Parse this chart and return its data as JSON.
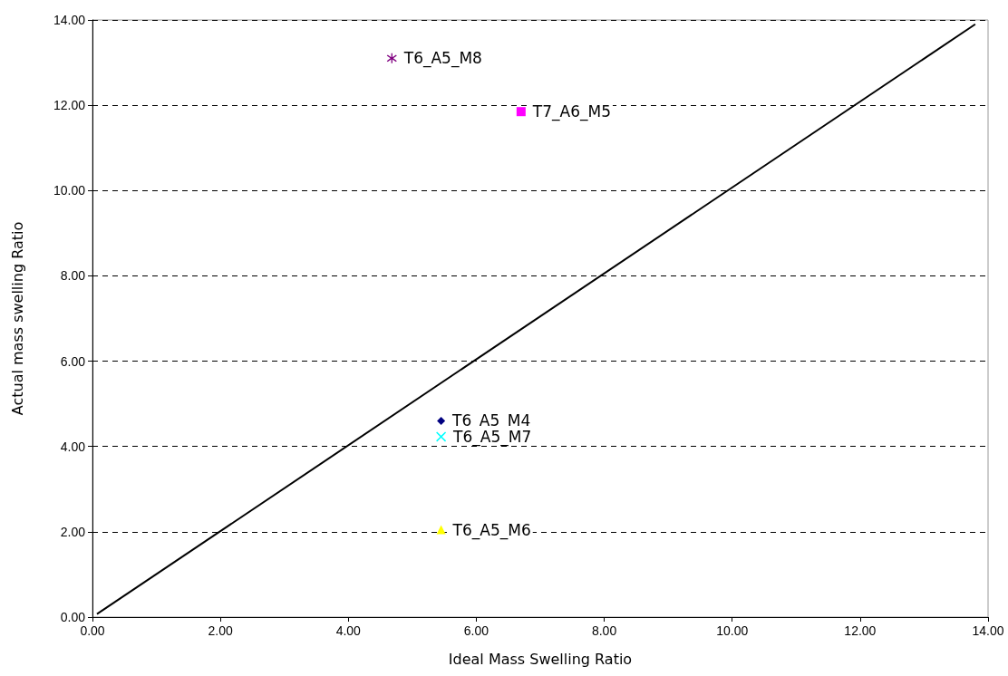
{
  "chart_data": {
    "type": "scatter",
    "xlabel": "Ideal Mass Swelling Ratio",
    "ylabel": "Actual mass swelling Ratio",
    "xlim": [
      0,
      14
    ],
    "ylim": [
      0,
      14
    ],
    "xticks": [
      {
        "value": 0,
        "label": "0.00"
      },
      {
        "value": 2,
        "label": "2.00"
      },
      {
        "value": 4,
        "label": "4.00"
      },
      {
        "value": 6,
        "label": "6.00"
      },
      {
        "value": 8,
        "label": "8.00"
      },
      {
        "value": 10,
        "label": "10.00"
      },
      {
        "value": 12,
        "label": "12.00"
      },
      {
        "value": 14,
        "label": "14.00"
      }
    ],
    "yticks": [
      {
        "value": 0,
        "label": "0.00"
      },
      {
        "value": 2,
        "label": "2.00"
      },
      {
        "value": 4,
        "label": "4.00"
      },
      {
        "value": 6,
        "label": "6.00"
      },
      {
        "value": 8,
        "label": "8.00"
      },
      {
        "value": 10,
        "label": "10.00"
      },
      {
        "value": 12,
        "label": "12.00"
      },
      {
        "value": 14,
        "label": "14.00"
      }
    ],
    "grid": "y",
    "legend": false,
    "series": [
      {
        "name": "T6_A5_M4",
        "color": "#000080",
        "marker": "diamond",
        "x": [
          5.45
        ],
        "values": [
          4.6
        ]
      },
      {
        "name": "T7_A6_M5",
        "color": "#ff00ff",
        "marker": "square",
        "x": [
          6.7
        ],
        "values": [
          11.85
        ]
      },
      {
        "name": "T6_A5_M6",
        "color": "#ffff00",
        "marker": "triangle",
        "x": [
          5.45
        ],
        "values": [
          2.05
        ]
      },
      {
        "name": "T6_A5_M7",
        "color": "#00ffff",
        "marker": "cross",
        "x": [
          5.45
        ],
        "values": [
          4.23
        ]
      },
      {
        "name": "T6_A5_M8",
        "color": "#800080",
        "marker": "star",
        "x": [
          4.68
        ],
        "values": [
          13.1
        ]
      },
      {
        "type": "line",
        "color": "#000000",
        "marker": "none",
        "line_style": "solid",
        "x": [
          0.07,
          13.8
        ],
        "values": [
          0.07,
          13.9
        ]
      }
    ]
  }
}
